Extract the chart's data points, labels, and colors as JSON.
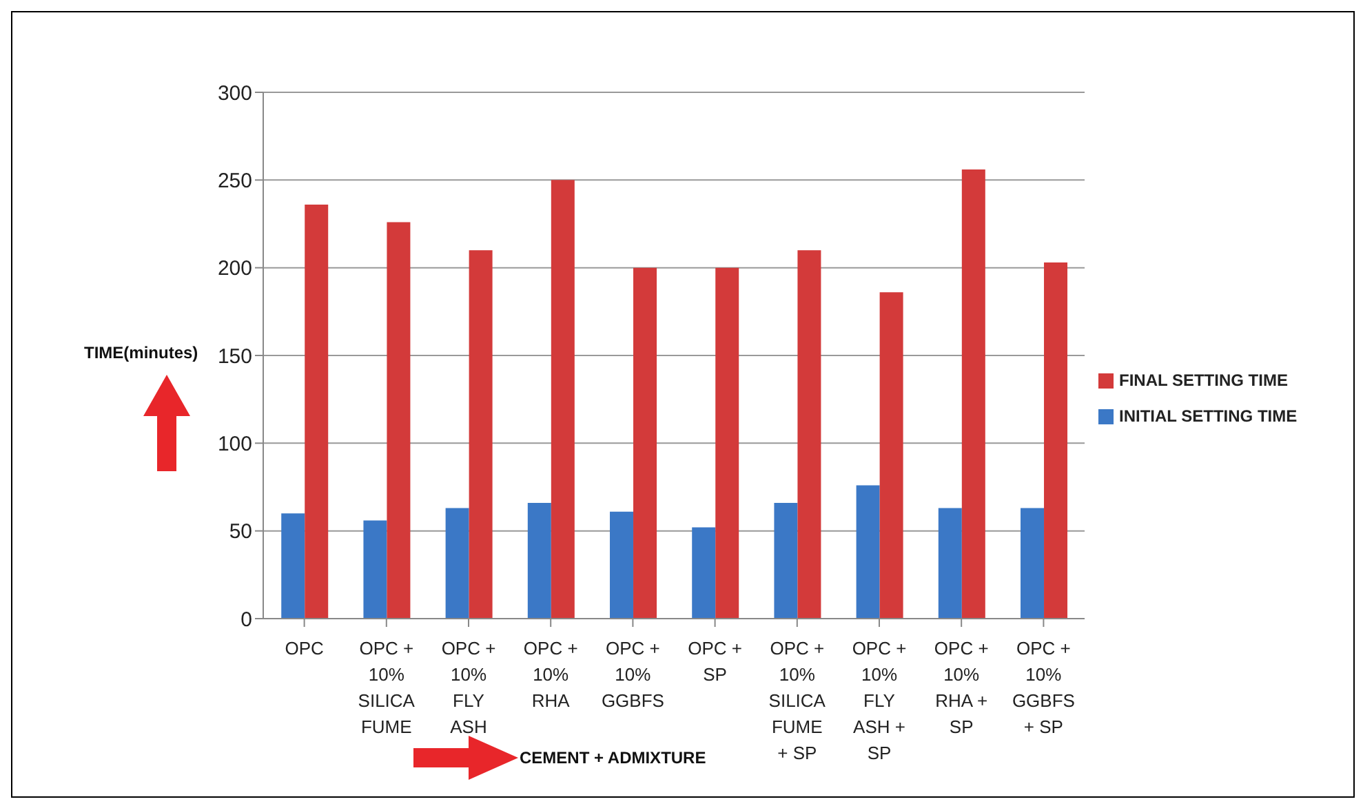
{
  "chart_data": {
    "type": "bar",
    "xlabel": "CEMENT + ADMIXTURE",
    "ylabel": "TIME(minutes)",
    "categories": [
      "OPC",
      "OPC + 10% SILICA FUME",
      "OPC + 10% FLY ASH",
      "OPC + 10% RHA",
      "OPC + 10% GGBFS",
      "OPC + SP",
      "OPC + 10% SILICA FUME + SP",
      "OPC + 10% FLY ASH + SP",
      "OPC + 10% RHA + SP",
      "OPC + 10% GGBFS + SP"
    ],
    "series": [
      {
        "name": "INITIAL SETTING TIME",
        "color": "#3b78c6",
        "values": [
          60,
          56,
          63,
          66,
          61,
          52,
          66,
          76,
          63,
          63
        ]
      },
      {
        "name": "FINAL SETTING TIME",
        "color": "#d33a3a",
        "values": [
          236,
          226,
          210,
          250,
          200,
          200,
          210,
          186,
          256,
          203
        ]
      }
    ],
    "ylim": [
      0,
      300
    ],
    "yticks": [
      0,
      50,
      100,
      150,
      200,
      250,
      300
    ],
    "grid": "y",
    "legend": "right"
  }
}
